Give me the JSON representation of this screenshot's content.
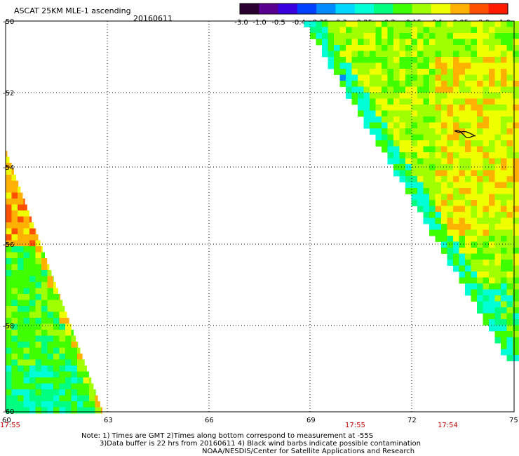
{
  "header": {
    "title": "ASCAT 25KM MLE-1 ascending",
    "date": "20160611"
  },
  "colorbar": {
    "tick_labels": [
      "-3.0",
      "-1.0",
      "-0.5",
      "-0.4",
      "-0.35",
      "-0.3",
      "-0.25",
      "-0.2",
      "-0.15",
      "-0.1",
      "-0.05",
      "0.0",
      "1.0"
    ],
    "colors": [
      "#2a0030",
      "#5a0090",
      "#3a00e0",
      "#0040ff",
      "#008cff",
      "#00d6ff",
      "#00ffd6",
      "#00ff80",
      "#40ff00",
      "#a0ff00",
      "#f0ff00",
      "#ffb000",
      "#ff5000",
      "#ff1a00"
    ]
  },
  "map": {
    "type": "heatmap",
    "lat_labels": [
      "-50",
      "-52",
      "-54",
      "-56",
      "-58",
      "-60"
    ],
    "lon_labels": [
      "60",
      "63",
      "66",
      "69",
      "72",
      "75"
    ],
    "time_labels": [
      "17:55",
      "17:55",
      "17:54"
    ],
    "lat_range": [
      -60,
      -50
    ],
    "lon_range": [
      60,
      75
    ],
    "grid": "dotted",
    "swaths": [
      {
        "name": "",
        "region": "lower-left",
        "dominant_value_range": [
          -0.3,
          0.0
        ]
      },
      {
        "name": "",
        "region": "upper-right",
        "dominant_value_range": [
          -0.3,
          -0.05
        ]
      }
    ]
  },
  "footer": {
    "line1": "Note: 1) Times are GMT 2)Times along bottom correspond to measurement at -55S",
    "line2": "3)Data buffer is 22 hrs from 20160611 4) Black wind barbs indicate possible contamination",
    "line3": "NOAA/NESDIS/Center for Satellite Applications and Research"
  }
}
